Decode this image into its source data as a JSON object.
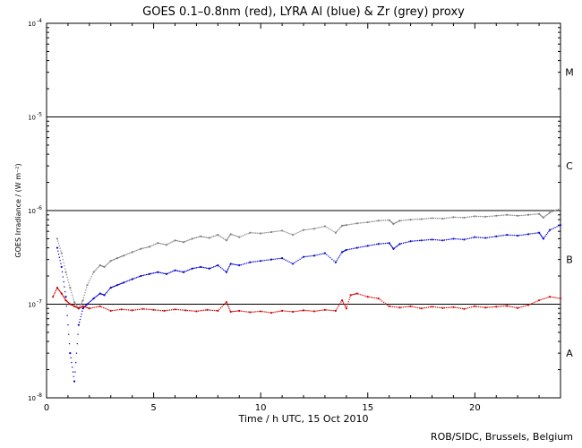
{
  "chart_data": {
    "type": "scatter",
    "title": "GOES 0.1–0.8nm (red), LYRA Al (blue) & Zr (grey) proxy",
    "xlabel": "Time / h UTC, 15 Oct 2010",
    "ylabel": "GOES Irradiance / (W m⁻²)",
    "xlim": [
      0,
      24
    ],
    "ylim": [
      1e-08,
      0.0001
    ],
    "y_scale": "log",
    "x_ticks": [
      0,
      5,
      10,
      15,
      20
    ],
    "y_ticks": [
      {
        "value": 1e-08,
        "mantissa": "10",
        "exp": "-8"
      },
      {
        "value": 1e-07,
        "mantissa": "10",
        "exp": "-7"
      },
      {
        "value": 1e-06,
        "mantissa": "10",
        "exp": "-6"
      },
      {
        "value": 1e-05,
        "mantissa": "10",
        "exp": "-5"
      },
      {
        "value": 0.0001,
        "mantissa": "10",
        "exp": "-4"
      }
    ],
    "class_lines": [
      1e-07,
      1e-06,
      1e-05
    ],
    "class_labels": [
      {
        "label": "A",
        "y": 3e-08
      },
      {
        "label": "B",
        "y": 3e-07
      },
      {
        "label": "C",
        "y": 3e-06
      },
      {
        "label": "M",
        "y": 3e-05
      }
    ],
    "series": [
      {
        "color": "#808080",
        "x": [
          0.5,
          0.7,
          0.9,
          1.1,
          1.3,
          1.5,
          1.7,
          1.9,
          2.2,
          2.5,
          2.7,
          3.0,
          3.3,
          3.6,
          4.0,
          4.4,
          4.8,
          5.2,
          5.6,
          6.0,
          6.4,
          6.8,
          7.2,
          7.6,
          8.0,
          8.4,
          8.6,
          9.0,
          9.5,
          10.0,
          10.5,
          11.0,
          11.5,
          12.0,
          12.5,
          13.0,
          13.5,
          13.8,
          14.0,
          14.5,
          15.0,
          15.5,
          16.0,
          16.2,
          16.5,
          17.0,
          17.5,
          18.0,
          18.5,
          19.0,
          19.5,
          20.0,
          20.5,
          21.0,
          21.5,
          22.0,
          22.5,
          23.0,
          23.2,
          23.5,
          24.0
        ],
        "y": [
          5e-07,
          3.5e-07,
          2.2e-07,
          1.5e-07,
          1.05e-07,
          9e-08,
          1.1e-07,
          1.6e-07,
          2.2e-07,
          2.6e-07,
          2.5e-07,
          2.9e-07,
          3.1e-07,
          3.3e-07,
          3.6e-07,
          3.9e-07,
          4.1e-07,
          4.5e-07,
          4.3e-07,
          4.8e-07,
          4.6e-07,
          5e-07,
          5.3e-07,
          5.1e-07,
          5.5e-07,
          4.8e-07,
          5.6e-07,
          5.2e-07,
          5.8e-07,
          5.7e-07,
          5.9e-07,
          6.1e-07,
          5.5e-07,
          6.2e-07,
          6.4e-07,
          6.8e-07,
          5.8e-07,
          6.9e-07,
          7e-07,
          7.3e-07,
          7.5e-07,
          7.8e-07,
          7.9e-07,
          7.2e-07,
          7.8e-07,
          8e-07,
          8.1e-07,
          8.3e-07,
          8.2e-07,
          8.5e-07,
          8.4e-07,
          8.7e-07,
          8.6e-07,
          8.8e-07,
          9e-07,
          8.8e-07,
          9e-07,
          9.2e-07,
          8.4e-07,
          9.5e-07,
          1.05e-06
        ]
      },
      {
        "color": "#0000cc",
        "x": [
          0.5,
          0.7,
          0.9,
          1.1,
          1.3,
          1.5,
          1.7,
          1.9,
          2.2,
          2.5,
          2.7,
          3.0,
          3.3,
          3.6,
          4.0,
          4.4,
          4.8,
          5.2,
          5.6,
          6.0,
          6.4,
          6.8,
          7.2,
          7.6,
          8.0,
          8.4,
          8.6,
          9.0,
          9.5,
          10.0,
          10.5,
          11.0,
          11.5,
          12.0,
          12.5,
          13.0,
          13.5,
          13.8,
          14.0,
          14.5,
          15.0,
          15.5,
          16.0,
          16.2,
          16.5,
          17.0,
          17.5,
          18.0,
          18.5,
          19.0,
          19.5,
          20.0,
          20.5,
          21.0,
          21.5,
          22.0,
          22.5,
          23.0,
          23.2,
          23.5,
          24.0
        ],
        "y": [
          4e-07,
          2.5e-07,
          1.2e-07,
          3e-08,
          1.5e-08,
          6e-08,
          9e-08,
          1e-07,
          1.15e-07,
          1.3e-07,
          1.25e-07,
          1.5e-07,
          1.6e-07,
          1.7e-07,
          1.85e-07,
          2e-07,
          2.1e-07,
          2.2e-07,
          2.1e-07,
          2.3e-07,
          2.2e-07,
          2.4e-07,
          2.5e-07,
          2.4e-07,
          2.6e-07,
          2.2e-07,
          2.7e-07,
          2.6e-07,
          2.8e-07,
          2.9e-07,
          3e-07,
          3.1e-07,
          2.7e-07,
          3.2e-07,
          3.3e-07,
          3.5e-07,
          2.8e-07,
          3.6e-07,
          3.8e-07,
          4e-07,
          4.2e-07,
          4.4e-07,
          4.5e-07,
          3.9e-07,
          4.4e-07,
          4.7e-07,
          4.8e-07,
          4.9e-07,
          4.8e-07,
          5e-07,
          4.9e-07,
          5.2e-07,
          5.1e-07,
          5.3e-07,
          5.5e-07,
          5.4e-07,
          5.6e-07,
          5.8e-07,
          5e-07,
          6.2e-07,
          7e-07
        ]
      },
      {
        "color": "#cc0000",
        "x": [
          0.3,
          0.5,
          0.7,
          0.9,
          1.1,
          1.3,
          1.5,
          1.7,
          2.0,
          2.5,
          3.0,
          3.5,
          4.0,
          4.5,
          5.0,
          5.5,
          6.0,
          6.5,
          7.0,
          7.5,
          8.0,
          8.4,
          8.6,
          9.0,
          9.5,
          10.0,
          10.5,
          11.0,
          11.5,
          12.0,
          12.5,
          13.0,
          13.5,
          13.8,
          14.0,
          14.2,
          14.5,
          15.0,
          15.5,
          16.0,
          16.5,
          17.0,
          17.5,
          18.0,
          18.5,
          19.0,
          19.5,
          20.0,
          20.5,
          21.0,
          21.5,
          22.0,
          22.5,
          23.0,
          23.5,
          24.0
        ],
        "y": [
          1.2e-07,
          1.5e-07,
          1.3e-07,
          1.1e-07,
          1e-07,
          9.5e-08,
          9e-08,
          9.5e-08,
          9e-08,
          9.5e-08,
          8.5e-08,
          8.8e-08,
          8.6e-08,
          8.9e-08,
          8.7e-08,
          8.5e-08,
          8.8e-08,
          8.6e-08,
          8.4e-08,
          8.7e-08,
          8.5e-08,
          1.05e-07,
          8.3e-08,
          8.5e-08,
          8.2e-08,
          8.4e-08,
          8.1e-08,
          8.5e-08,
          8.3e-08,
          8.6e-08,
          8.4e-08,
          8.7e-08,
          8.5e-08,
          1.1e-07,
          9e-08,
          1.25e-07,
          1.3e-07,
          1.2e-07,
          1.15e-07,
          9.5e-08,
          9.2e-08,
          9.5e-08,
          9e-08,
          9.4e-08,
          9.1e-08,
          9.3e-08,
          8.9e-08,
          9.5e-08,
          9.2e-08,
          9.4e-08,
          9.6e-08,
          9.1e-08,
          9.8e-08,
          1.1e-07,
          1.2e-07,
          1.15e-07
        ]
      }
    ]
  },
  "footer": "ROB/SIDC, Brussels, Belgium"
}
